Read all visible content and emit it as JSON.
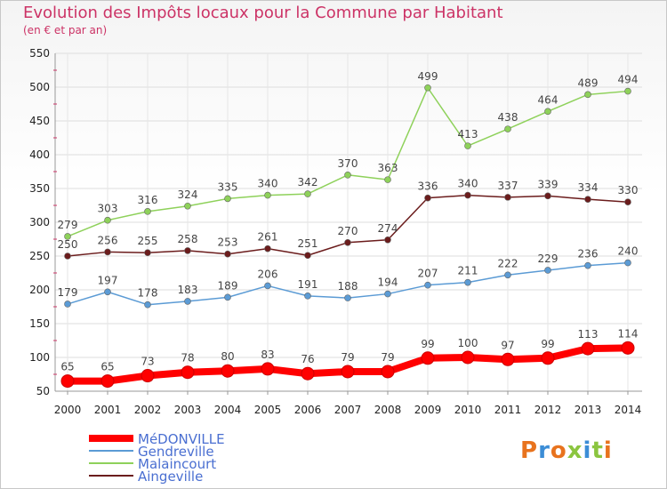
{
  "header": {
    "title": "Evolution des Impôts locaux pour la Commune par Habitant",
    "subtitle": "(en € et par an)"
  },
  "logo": {
    "text": "Proxiti",
    "colors": [
      "#e8731e",
      "#3c8dd6",
      "#e8731e",
      "#8bc53f",
      "#3c8dd6",
      "#8bc53f",
      "#e8731e"
    ]
  },
  "chart_data": {
    "type": "line",
    "x": [
      "2000",
      "2001",
      "2002",
      "2003",
      "2004",
      "2005",
      "2006",
      "2007",
      "2008",
      "2009",
      "2010",
      "2011",
      "2012",
      "2013",
      "2014"
    ],
    "ylim": [
      50,
      550
    ],
    "yticks": [
      50,
      100,
      150,
      200,
      250,
      300,
      350,
      400,
      450,
      500,
      550
    ],
    "grid": true,
    "legend_position": "bottom-left",
    "series": [
      {
        "name": "MéDONVILLE",
        "color": "#ff0000",
        "emphasis": true,
        "values": [
          65,
          65,
          73,
          78,
          80,
          83,
          76,
          79,
          79,
          99,
          100,
          97,
          99,
          113,
          114
        ]
      },
      {
        "name": "Gendreville",
        "color": "#5b9bd5",
        "emphasis": false,
        "values": [
          179,
          197,
          178,
          183,
          189,
          206,
          191,
          188,
          194,
          207,
          211,
          222,
          229,
          236,
          240
        ]
      },
      {
        "name": "Malaincourt",
        "color": "#8ed15a",
        "emphasis": false,
        "values": [
          279,
          303,
          316,
          324,
          335,
          340,
          342,
          370,
          363,
          499,
          413,
          438,
          464,
          489,
          494
        ]
      },
      {
        "name": "Aingeville",
        "color": "#6b1c1c",
        "emphasis": false,
        "values": [
          250,
          256,
          255,
          258,
          253,
          261,
          251,
          270,
          274,
          336,
          340,
          337,
          339,
          334,
          330
        ]
      }
    ]
  }
}
